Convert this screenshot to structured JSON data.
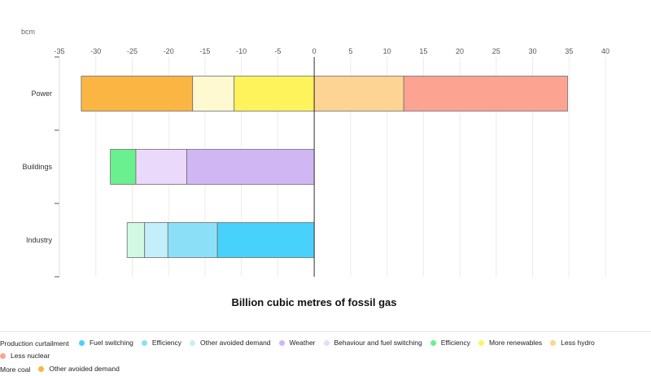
{
  "chart_data": {
    "type": "bar",
    "orientation": "horizontal",
    "stacked": true,
    "unit_label": "bcm",
    "xlabel": "Billion cubic metres of fossil gas",
    "xlim": [
      -35,
      40
    ],
    "xticks": [
      -35,
      -30,
      -25,
      -20,
      -15,
      -10,
      -5,
      0,
      5,
      10,
      15,
      20,
      25,
      30,
      35,
      40
    ],
    "grid": true,
    "legend_position": "bottom",
    "categories": [
      "Power",
      "Buildings",
      "Industry"
    ],
    "segments": [
      {
        "category": "Power",
        "from": -32,
        "to": -16.7,
        "color": "#fbb543"
      },
      {
        "category": "Power",
        "from": -16.7,
        "to": -11,
        "color": "#fff9d1"
      },
      {
        "category": "Power",
        "from": -11,
        "to": 0,
        "color": "#fff35c"
      },
      {
        "category": "Power",
        "from": 0,
        "to": 12.3,
        "color": "#fdd493"
      },
      {
        "category": "Power",
        "from": 12.3,
        "to": 34.8,
        "color": "#fca392"
      },
      {
        "category": "Buildings",
        "from": -28,
        "to": -24.5,
        "color": "#6af08f"
      },
      {
        "category": "Buildings",
        "from": -24.5,
        "to": -17.5,
        "color": "#ead9fb"
      },
      {
        "category": "Buildings",
        "from": -17.5,
        "to": 0,
        "color": "#d0b7f4"
      },
      {
        "category": "Industry",
        "from": -25.7,
        "to": -23.3,
        "color": "#d2f8e4"
      },
      {
        "category": "Industry",
        "from": -23.3,
        "to": -20.1,
        "color": "#c4eef9"
      },
      {
        "category": "Industry",
        "from": -20.1,
        "to": -13.3,
        "color": "#8be0f7"
      },
      {
        "category": "Industry",
        "from": -13.3,
        "to": 0,
        "color": "#48d1fb"
      }
    ]
  },
  "legend": {
    "lead": "Production curtailment",
    "items": [
      {
        "label": "Fuel switching",
        "color": "#48d1fb"
      },
      {
        "label": "Efficiency",
        "color": "#8be0f7"
      },
      {
        "label": "Other avoided demand",
        "color": "#c4eef9"
      },
      {
        "label": "Weather",
        "color": "#d0b7f4"
      },
      {
        "label": "Behaviour and fuel switching",
        "color": "#ead9fb"
      },
      {
        "label": "Efficiency",
        "color": "#6af08f"
      },
      {
        "label": "More renewables",
        "color": "#fff35c"
      },
      {
        "label": "Less hydro",
        "color": "#fdd493"
      },
      {
        "label": "Less nuclear",
        "color": "#fca392"
      }
    ],
    "lead2": "More coal",
    "items2": [
      {
        "label": "Other avoided demand",
        "color": "#fbb543"
      }
    ]
  }
}
